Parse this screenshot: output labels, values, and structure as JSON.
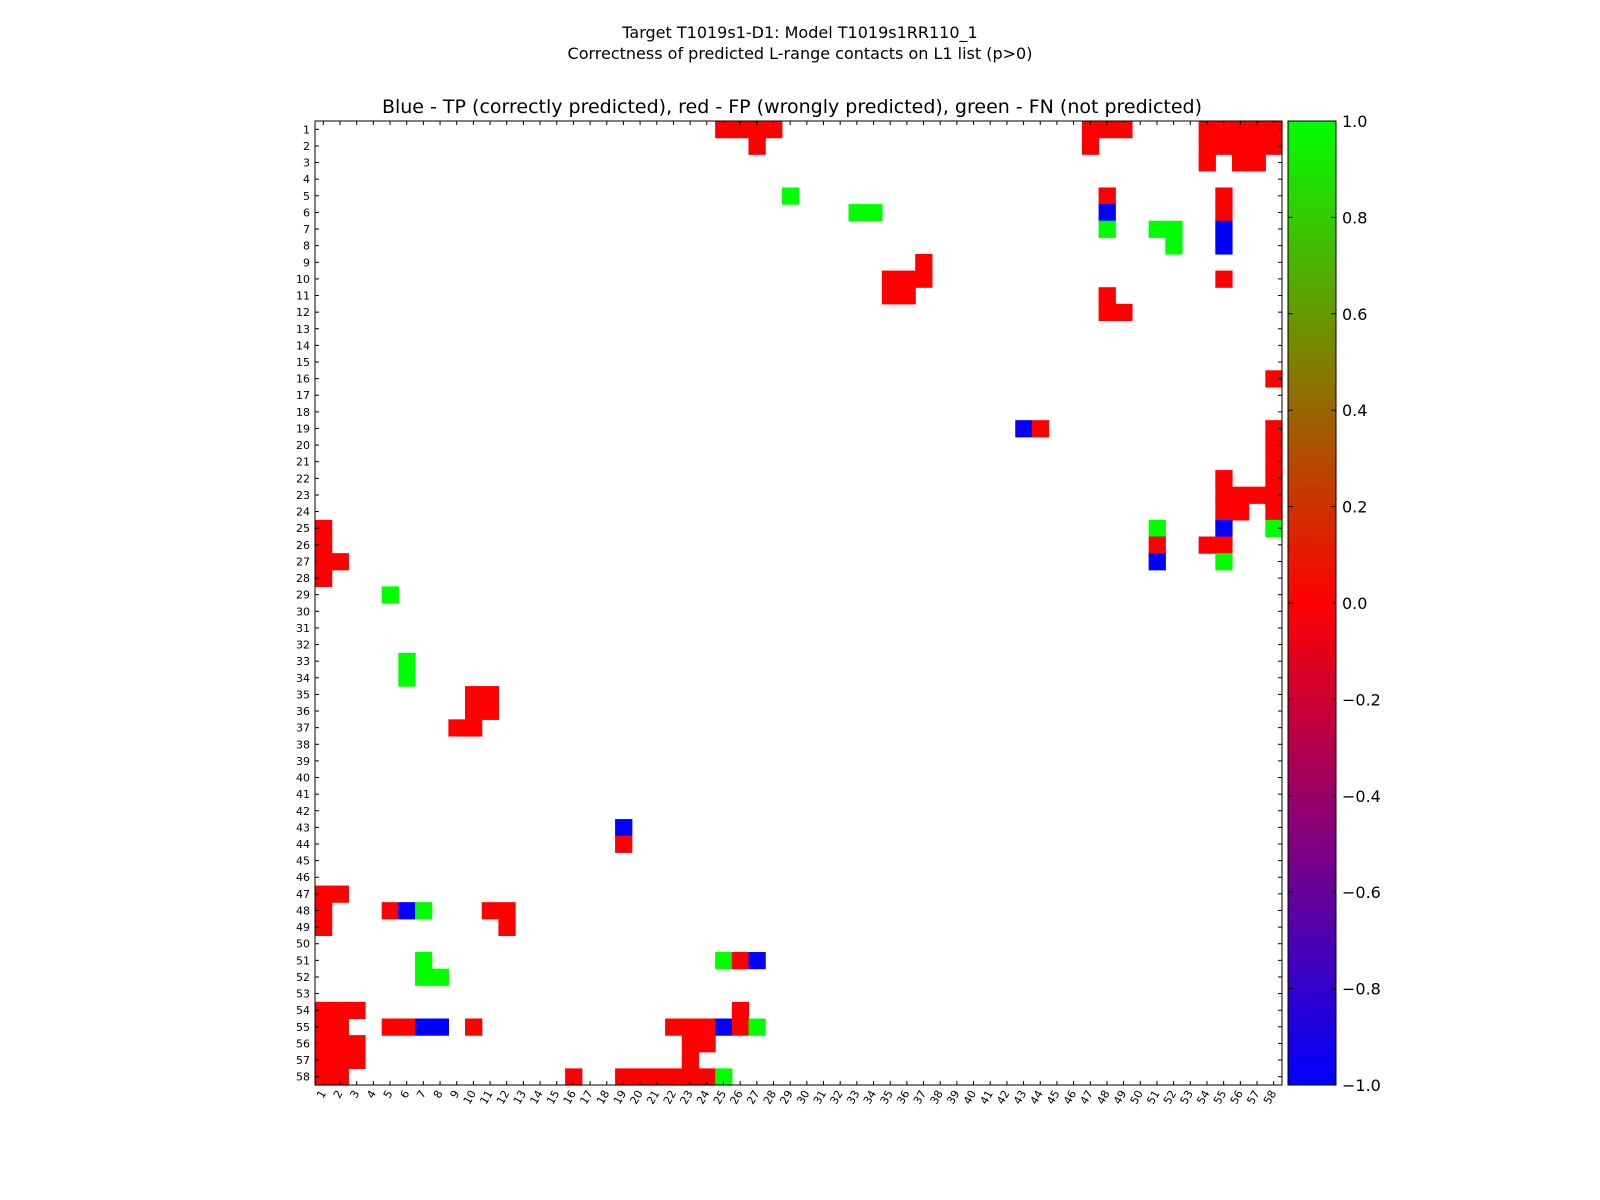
{
  "chart_data": {
    "type": "heatmap",
    "suptitle_lines": [
      "Target T1019s1-D1: Model T1019s1RR110_1",
      "Correctness of predicted L-range contacts on L1 list (p>0)"
    ],
    "title": "Blue - TP (correctly predicted), red - FP (wrongly predicted), green - FN (not predicted)",
    "xlabel": "",
    "ylabel": "",
    "n": 58,
    "xlim": [
      1,
      58
    ],
    "ylim": [
      58,
      1
    ],
    "x_ticks": [
      "1",
      "2",
      "3",
      "4",
      "5",
      "6",
      "7",
      "8",
      "9",
      "10",
      "11",
      "12",
      "13",
      "14",
      "15",
      "16",
      "17",
      "18",
      "19",
      "20",
      "21",
      "22",
      "23",
      "24",
      "25",
      "26",
      "27",
      "28",
      "29",
      "30",
      "31",
      "32",
      "33",
      "34",
      "35",
      "36",
      "37",
      "38",
      "39",
      "40",
      "41",
      "42",
      "43",
      "44",
      "45",
      "46",
      "47",
      "48",
      "49",
      "50",
      "51",
      "52",
      "53",
      "54",
      "55",
      "56",
      "57",
      "58"
    ],
    "y_ticks": [
      "1",
      "2",
      "3",
      "4",
      "5",
      "6",
      "7",
      "8",
      "9",
      "10",
      "11",
      "12",
      "13",
      "14",
      "15",
      "16",
      "17",
      "18",
      "19",
      "20",
      "21",
      "22",
      "23",
      "24",
      "25",
      "26",
      "27",
      "28",
      "29",
      "30",
      "31",
      "32",
      "33",
      "34",
      "35",
      "36",
      "37",
      "38",
      "39",
      "40",
      "41",
      "42",
      "43",
      "44",
      "45",
      "46",
      "47",
      "48",
      "49",
      "50",
      "51",
      "52",
      "53",
      "54",
      "55",
      "56",
      "57",
      "58"
    ],
    "legend": {
      "TP": {
        "value": -1.0,
        "label": "TP (correctly predicted)",
        "color": "#0000ff"
      },
      "FP": {
        "value": 0.0,
        "label": "FP (wrongly predicted)",
        "color": "#ff0000"
      },
      "FN": {
        "value": 1.0,
        "label": "FN (not predicted)",
        "color": "#00ff00"
      }
    },
    "colorbar": {
      "range": [
        -1.0,
        1.0
      ],
      "ticks": [
        "1.0",
        "0.8",
        "0.6",
        "0.4",
        "0.2",
        "0.0",
        "−0.2",
        "−0.4",
        "−0.6",
        "−0.8",
        "−1.0"
      ],
      "stops": [
        "#0000ff",
        "#ff0000",
        "#00ff00"
      ]
    },
    "cells": [
      {
        "row": 1,
        "col": 25,
        "value": 0
      },
      {
        "row": 1,
        "col": 26,
        "value": 0
      },
      {
        "row": 1,
        "col": 27,
        "value": 0
      },
      {
        "row": 1,
        "col": 28,
        "value": 0
      },
      {
        "row": 1,
        "col": 47,
        "value": 0
      },
      {
        "row": 1,
        "col": 48,
        "value": 0
      },
      {
        "row": 1,
        "col": 49,
        "value": 0
      },
      {
        "row": 1,
        "col": 54,
        "value": 0
      },
      {
        "row": 1,
        "col": 55,
        "value": 0
      },
      {
        "row": 1,
        "col": 56,
        "value": 0
      },
      {
        "row": 1,
        "col": 57,
        "value": 0
      },
      {
        "row": 1,
        "col": 58,
        "value": 0
      },
      {
        "row": 2,
        "col": 27,
        "value": 0
      },
      {
        "row": 2,
        "col": 47,
        "value": 0
      },
      {
        "row": 2,
        "col": 54,
        "value": 0
      },
      {
        "row": 2,
        "col": 55,
        "value": 0
      },
      {
        "row": 2,
        "col": 56,
        "value": 0
      },
      {
        "row": 2,
        "col": 57,
        "value": 0
      },
      {
        "row": 2,
        "col": 58,
        "value": 0
      },
      {
        "row": 3,
        "col": 54,
        "value": 0
      },
      {
        "row": 3,
        "col": 56,
        "value": 0
      },
      {
        "row": 3,
        "col": 57,
        "value": 0
      },
      {
        "row": 5,
        "col": 29,
        "value": 1
      },
      {
        "row": 5,
        "col": 48,
        "value": 0
      },
      {
        "row": 5,
        "col": 55,
        "value": 0
      },
      {
        "row": 6,
        "col": 33,
        "value": 1
      },
      {
        "row": 6,
        "col": 34,
        "value": 1
      },
      {
        "row": 6,
        "col": 48,
        "value": -1
      },
      {
        "row": 6,
        "col": 55,
        "value": 0
      },
      {
        "row": 7,
        "col": 48,
        "value": 1
      },
      {
        "row": 7,
        "col": 51,
        "value": 1
      },
      {
        "row": 7,
        "col": 52,
        "value": 1
      },
      {
        "row": 7,
        "col": 55,
        "value": -1
      },
      {
        "row": 8,
        "col": 52,
        "value": 1
      },
      {
        "row": 8,
        "col": 55,
        "value": -1
      },
      {
        "row": 9,
        "col": 37,
        "value": 0
      },
      {
        "row": 10,
        "col": 35,
        "value": 0
      },
      {
        "row": 10,
        "col": 36,
        "value": 0
      },
      {
        "row": 10,
        "col": 37,
        "value": 0
      },
      {
        "row": 10,
        "col": 55,
        "value": 0
      },
      {
        "row": 11,
        "col": 35,
        "value": 0
      },
      {
        "row": 11,
        "col": 36,
        "value": 0
      },
      {
        "row": 11,
        "col": 48,
        "value": 0
      },
      {
        "row": 12,
        "col": 48,
        "value": 0
      },
      {
        "row": 12,
        "col": 49,
        "value": 0
      },
      {
        "row": 16,
        "col": 58,
        "value": 0
      },
      {
        "row": 19,
        "col": 43,
        "value": -1
      },
      {
        "row": 19,
        "col": 44,
        "value": 0
      },
      {
        "row": 19,
        "col": 58,
        "value": 0
      },
      {
        "row": 20,
        "col": 58,
        "value": 0
      },
      {
        "row": 21,
        "col": 58,
        "value": 0
      },
      {
        "row": 22,
        "col": 55,
        "value": 0
      },
      {
        "row": 22,
        "col": 58,
        "value": 0
      },
      {
        "row": 23,
        "col": 55,
        "value": 0
      },
      {
        "row": 23,
        "col": 56,
        "value": 0
      },
      {
        "row": 23,
        "col": 57,
        "value": 0
      },
      {
        "row": 23,
        "col": 58,
        "value": 0
      },
      {
        "row": 24,
        "col": 55,
        "value": 0
      },
      {
        "row": 24,
        "col": 56,
        "value": 0
      },
      {
        "row": 24,
        "col": 58,
        "value": 0
      },
      {
        "row": 25,
        "col": 1,
        "value": 0
      },
      {
        "row": 25,
        "col": 51,
        "value": 1
      },
      {
        "row": 25,
        "col": 55,
        "value": -1
      },
      {
        "row": 25,
        "col": 58,
        "value": 1
      },
      {
        "row": 26,
        "col": 1,
        "value": 0
      },
      {
        "row": 26,
        "col": 51,
        "value": 0
      },
      {
        "row": 26,
        "col": 54,
        "value": 0
      },
      {
        "row": 26,
        "col": 55,
        "value": 0
      },
      {
        "row": 27,
        "col": 1,
        "value": 0
      },
      {
        "row": 27,
        "col": 2,
        "value": 0
      },
      {
        "row": 27,
        "col": 51,
        "value": -1
      },
      {
        "row": 27,
        "col": 55,
        "value": 1
      },
      {
        "row": 28,
        "col": 1,
        "value": 0
      },
      {
        "row": 29,
        "col": 5,
        "value": 1
      },
      {
        "row": 33,
        "col": 6,
        "value": 1
      },
      {
        "row": 34,
        "col": 6,
        "value": 1
      },
      {
        "row": 35,
        "col": 10,
        "value": 0
      },
      {
        "row": 35,
        "col": 11,
        "value": 0
      },
      {
        "row": 36,
        "col": 10,
        "value": 0
      },
      {
        "row": 36,
        "col": 11,
        "value": 0
      },
      {
        "row": 37,
        "col": 9,
        "value": 0
      },
      {
        "row": 37,
        "col": 10,
        "value": 0
      },
      {
        "row": 43,
        "col": 19,
        "value": -1
      },
      {
        "row": 44,
        "col": 19,
        "value": 0
      },
      {
        "row": 47,
        "col": 1,
        "value": 0
      },
      {
        "row": 47,
        "col": 2,
        "value": 0
      },
      {
        "row": 48,
        "col": 1,
        "value": 0
      },
      {
        "row": 48,
        "col": 5,
        "value": 0
      },
      {
        "row": 48,
        "col": 6,
        "value": -1
      },
      {
        "row": 48,
        "col": 7,
        "value": 1
      },
      {
        "row": 48,
        "col": 11,
        "value": 0
      },
      {
        "row": 48,
        "col": 12,
        "value": 0
      },
      {
        "row": 49,
        "col": 1,
        "value": 0
      },
      {
        "row": 49,
        "col": 12,
        "value": 0
      },
      {
        "row": 51,
        "col": 7,
        "value": 1
      },
      {
        "row": 51,
        "col": 25,
        "value": 1
      },
      {
        "row": 51,
        "col": 26,
        "value": 0
      },
      {
        "row": 51,
        "col": 27,
        "value": -1
      },
      {
        "row": 52,
        "col": 7,
        "value": 1
      },
      {
        "row": 52,
        "col": 8,
        "value": 1
      },
      {
        "row": 54,
        "col": 1,
        "value": 0
      },
      {
        "row": 54,
        "col": 2,
        "value": 0
      },
      {
        "row": 54,
        "col": 3,
        "value": 0
      },
      {
        "row": 54,
        "col": 26,
        "value": 0
      },
      {
        "row": 55,
        "col": 1,
        "value": 0
      },
      {
        "row": 55,
        "col": 2,
        "value": 0
      },
      {
        "row": 55,
        "col": 5,
        "value": 0
      },
      {
        "row": 55,
        "col": 6,
        "value": 0
      },
      {
        "row": 55,
        "col": 7,
        "value": -1
      },
      {
        "row": 55,
        "col": 8,
        "value": -1
      },
      {
        "row": 55,
        "col": 10,
        "value": 0
      },
      {
        "row": 55,
        "col": 22,
        "value": 0
      },
      {
        "row": 55,
        "col": 23,
        "value": 0
      },
      {
        "row": 55,
        "col": 24,
        "value": 0
      },
      {
        "row": 55,
        "col": 25,
        "value": -1
      },
      {
        "row": 55,
        "col": 26,
        "value": 0
      },
      {
        "row": 55,
        "col": 27,
        "value": 1
      },
      {
        "row": 56,
        "col": 1,
        "value": 0
      },
      {
        "row": 56,
        "col": 2,
        "value": 0
      },
      {
        "row": 56,
        "col": 3,
        "value": 0
      },
      {
        "row": 56,
        "col": 23,
        "value": 0
      },
      {
        "row": 56,
        "col": 24,
        "value": 0
      },
      {
        "row": 57,
        "col": 1,
        "value": 0
      },
      {
        "row": 57,
        "col": 2,
        "value": 0
      },
      {
        "row": 57,
        "col": 3,
        "value": 0
      },
      {
        "row": 57,
        "col": 23,
        "value": 0
      },
      {
        "row": 58,
        "col": 1,
        "value": 0
      },
      {
        "row": 58,
        "col": 2,
        "value": 0
      },
      {
        "row": 58,
        "col": 16,
        "value": 0
      },
      {
        "row": 58,
        "col": 19,
        "value": 0
      },
      {
        "row": 58,
        "col": 20,
        "value": 0
      },
      {
        "row": 58,
        "col": 21,
        "value": 0
      },
      {
        "row": 58,
        "col": 22,
        "value": 0
      },
      {
        "row": 58,
        "col": 23,
        "value": 0
      },
      {
        "row": 58,
        "col": 24,
        "value": 0
      },
      {
        "row": 58,
        "col": 25,
        "value": 1
      }
    ]
  }
}
